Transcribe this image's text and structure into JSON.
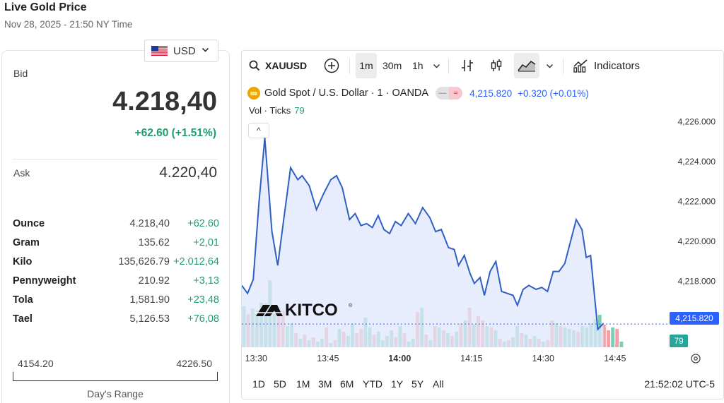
{
  "header": {
    "title": "Live Gold Price",
    "datetime": "Nov 28, 2025 - 21:50 NY Time"
  },
  "currency": {
    "selected": "USD",
    "flag": "us-flag-icon"
  },
  "quote": {
    "bid_label": "Bid",
    "bid": "4.218,40",
    "bid_change": "+62.60 (+1.51%)",
    "ask_label": "Ask",
    "ask": "4.220,40"
  },
  "units": [
    {
      "name": "Ounce",
      "value": "4.218,40",
      "change": "+62.60"
    },
    {
      "name": "Gram",
      "value": "135.62",
      "change": "+2,01"
    },
    {
      "name": "Kilo",
      "value": "135,626.79",
      "change": "+2.012,64"
    },
    {
      "name": "Pennyweight",
      "value": "210.92",
      "change": "+3,13"
    },
    {
      "name": "Tola",
      "value": "1,581.90",
      "change": "+23,48"
    },
    {
      "name": "Tael",
      "value": "5,126.53",
      "change": "+76,08"
    }
  ],
  "days_range": {
    "low": "4154.20",
    "high": "4226.50",
    "label": "Day's Range"
  },
  "toolbar": {
    "symbol": "XAUUSD",
    "intervals": [
      "1m",
      "30m",
      "1h"
    ],
    "active_interval": "1m",
    "indicators_label": "Indicators"
  },
  "legend": {
    "symbol_desc": "Gold Spot / U.S. Dollar · 1 · OANDA",
    "pill_left": "—",
    "pill_right": "≈",
    "price": "4,215.820",
    "change": "+0.320 (+0.01%)",
    "vol_label": "Vol · Ticks",
    "vol_value": "79",
    "collapse_label": "^"
  },
  "watermark": "KITCO",
  "last_price_tag": "4,215.820",
  "volume_tag": "79",
  "colors": {
    "line": "#2f5fc4",
    "area": "#dfe7fb",
    "up_volume": "#7ecdb8",
    "down_volume": "#f2a0a5",
    "price_tag": "#2962ff",
    "vol_tag": "#26a69a",
    "green": "#1f9e6c"
  },
  "chart_data": {
    "type": "line",
    "title": "Gold Spot / U.S. Dollar · 1 · OANDA",
    "xlabel": "",
    "ylabel": "",
    "ylim": [
      4214.7,
      4226.8
    ],
    "y_ticks": [
      "4,226.000",
      "4,224.000",
      "4,222.000",
      "4,220.000",
      "4,218.000"
    ],
    "y_tick_values": [
      4226,
      4224,
      4222,
      4220,
      4218
    ],
    "x_ticks": [
      {
        "t": 13.5,
        "label": "13:30",
        "bold": false
      },
      {
        "t": 13.75,
        "label": "13:45",
        "bold": false
      },
      {
        "t": 14.0,
        "label": "14:00",
        "bold": true
      },
      {
        "t": 14.25,
        "label": "14:15",
        "bold": false
      },
      {
        "t": 14.5,
        "label": "14:30",
        "bold": false
      },
      {
        "t": 14.75,
        "label": "14:45",
        "bold": false
      }
    ],
    "xlim": [
      13.45,
      14.78
    ],
    "grid": false,
    "series": [
      {
        "values": [
          [
            13.45,
            4217.8
          ],
          [
            13.47,
            4217.4
          ],
          [
            13.49,
            4218.1
          ],
          [
            13.51,
            4222.0
          ],
          [
            13.53,
            4225.2
          ],
          [
            13.555,
            4220.5
          ],
          [
            13.575,
            4218.8
          ],
          [
            13.595,
            4221.0
          ],
          [
            13.62,
            4223.7
          ],
          [
            13.645,
            4223.1
          ],
          [
            13.66,
            4223.3
          ],
          [
            13.685,
            4222.8
          ],
          [
            13.71,
            4221.6
          ],
          [
            13.735,
            4222.4
          ],
          [
            13.76,
            4223.1
          ],
          [
            13.78,
            4223.3
          ],
          [
            13.8,
            4222.7
          ],
          [
            13.825,
            4221.1
          ],
          [
            13.845,
            4221.4
          ],
          [
            13.865,
            4220.8
          ],
          [
            13.885,
            4220.9
          ],
          [
            13.905,
            4220.7
          ],
          [
            13.925,
            4221.3
          ],
          [
            13.945,
            4220.6
          ],
          [
            13.965,
            4220.4
          ],
          [
            13.985,
            4221.0
          ],
          [
            14.005,
            4220.8
          ],
          [
            14.03,
            4221.4
          ],
          [
            14.055,
            4220.9
          ],
          [
            14.08,
            4221.7
          ],
          [
            14.105,
            4221.2
          ],
          [
            14.125,
            4220.5
          ],
          [
            14.145,
            4220.6
          ],
          [
            14.17,
            4219.7
          ],
          [
            14.19,
            4219.6
          ],
          [
            14.205,
            4218.8
          ],
          [
            14.225,
            4219.3
          ],
          [
            14.245,
            4218.4
          ],
          [
            14.26,
            4217.9
          ],
          [
            14.28,
            4218.2
          ],
          [
            14.295,
            4217.3
          ],
          [
            14.315,
            4218.5
          ],
          [
            14.335,
            4219.0
          ],
          [
            14.355,
            4217.5
          ],
          [
            14.375,
            4217.4
          ],
          [
            14.395,
            4217.3
          ],
          [
            14.41,
            4216.8
          ],
          [
            14.43,
            4217.6
          ],
          [
            14.45,
            4217.8
          ],
          [
            14.475,
            4217.6
          ],
          [
            14.495,
            4217.7
          ],
          [
            14.515,
            4217.5
          ],
          [
            14.535,
            4218.5
          ],
          [
            14.555,
            4218.5
          ],
          [
            14.575,
            4218.9
          ],
          [
            14.595,
            4220.0
          ],
          [
            14.615,
            4221.1
          ],
          [
            14.635,
            4220.6
          ],
          [
            14.65,
            4219.2
          ],
          [
            14.665,
            4219.3
          ],
          [
            14.69,
            4215.6
          ],
          [
            14.71,
            4215.9
          ]
        ]
      }
    ],
    "volume": [
      {
        "v": 58,
        "up": true
      },
      {
        "v": 47,
        "up": false
      },
      {
        "v": 55,
        "up": true
      },
      {
        "v": 52,
        "up": true
      },
      {
        "v": 63,
        "up": true
      },
      {
        "v": 62,
        "up": true
      },
      {
        "v": 95,
        "up": true
      },
      {
        "v": 55,
        "up": true
      },
      {
        "v": 44,
        "up": false
      },
      {
        "v": 52,
        "up": false
      },
      {
        "v": 30,
        "up": true
      },
      {
        "v": 34,
        "up": true
      },
      {
        "v": 20,
        "up": false
      },
      {
        "v": 12,
        "up": true
      },
      {
        "v": 18,
        "up": false
      },
      {
        "v": 10,
        "up": true
      },
      {
        "v": 14,
        "up": false
      },
      {
        "v": 8,
        "up": true
      },
      {
        "v": 12,
        "up": true
      },
      {
        "v": 28,
        "up": false
      },
      {
        "v": 6,
        "up": true
      },
      {
        "v": 10,
        "up": false
      },
      {
        "v": 26,
        "up": true
      },
      {
        "v": 22,
        "up": false
      },
      {
        "v": 16,
        "up": true
      },
      {
        "v": 34,
        "up": true
      },
      {
        "v": 20,
        "up": false
      },
      {
        "v": 26,
        "up": false
      },
      {
        "v": 42,
        "up": true
      },
      {
        "v": 28,
        "up": true
      },
      {
        "v": 18,
        "up": false
      },
      {
        "v": 22,
        "up": true
      },
      {
        "v": 10,
        "up": true
      },
      {
        "v": 16,
        "up": true
      },
      {
        "v": 24,
        "up": true
      },
      {
        "v": 14,
        "up": false
      },
      {
        "v": 30,
        "up": true
      },
      {
        "v": 20,
        "up": false
      },
      {
        "v": 8,
        "up": true
      },
      {
        "v": 12,
        "up": true
      },
      {
        "v": 50,
        "up": false
      },
      {
        "v": 56,
        "up": true
      },
      {
        "v": 18,
        "up": false
      },
      {
        "v": 10,
        "up": true
      },
      {
        "v": 30,
        "up": false
      },
      {
        "v": 28,
        "up": true
      },
      {
        "v": 24,
        "up": false
      },
      {
        "v": 20,
        "up": true
      },
      {
        "v": 16,
        "up": false
      },
      {
        "v": 22,
        "up": true
      },
      {
        "v": 34,
        "up": false
      },
      {
        "v": 38,
        "up": true
      },
      {
        "v": 56,
        "up": false
      },
      {
        "v": 32,
        "up": true
      },
      {
        "v": 44,
        "up": false
      },
      {
        "v": 38,
        "up": false
      },
      {
        "v": 30,
        "up": true
      },
      {
        "v": 28,
        "up": false
      },
      {
        "v": 24,
        "up": true
      },
      {
        "v": 12,
        "up": false
      },
      {
        "v": 8,
        "up": true
      },
      {
        "v": 10,
        "up": false
      },
      {
        "v": 14,
        "up": true
      },
      {
        "v": 30,
        "up": true
      },
      {
        "v": 20,
        "up": false
      },
      {
        "v": 18,
        "up": true
      },
      {
        "v": 12,
        "up": false
      },
      {
        "v": 16,
        "up": true
      },
      {
        "v": 12,
        "up": false
      },
      {
        "v": 8,
        "up": true
      },
      {
        "v": 10,
        "up": false
      },
      {
        "v": 38,
        "up": false
      },
      {
        "v": 34,
        "up": true
      },
      {
        "v": 30,
        "up": false
      },
      {
        "v": 28,
        "up": true
      },
      {
        "v": 26,
        "up": true
      },
      {
        "v": 24,
        "up": true
      },
      {
        "v": 22,
        "up": false
      },
      {
        "v": 30,
        "up": true
      },
      {
        "v": 28,
        "up": true
      },
      {
        "v": 34,
        "up": true
      },
      {
        "v": 40,
        "up": true
      },
      {
        "v": 46,
        "up": true
      },
      {
        "v": 32,
        "up": false
      },
      {
        "v": 24,
        "up": false
      },
      {
        "v": 28,
        "up": true
      },
      {
        "v": 26,
        "up": false
      },
      {
        "v": 8,
        "up": true
      }
    ]
  },
  "bottom": {
    "ranges": [
      "1D",
      "5D",
      "1M",
      "3M",
      "6M",
      "YTD",
      "1Y",
      "5Y",
      "All"
    ],
    "clock": "21:52:02 UTC-5"
  }
}
